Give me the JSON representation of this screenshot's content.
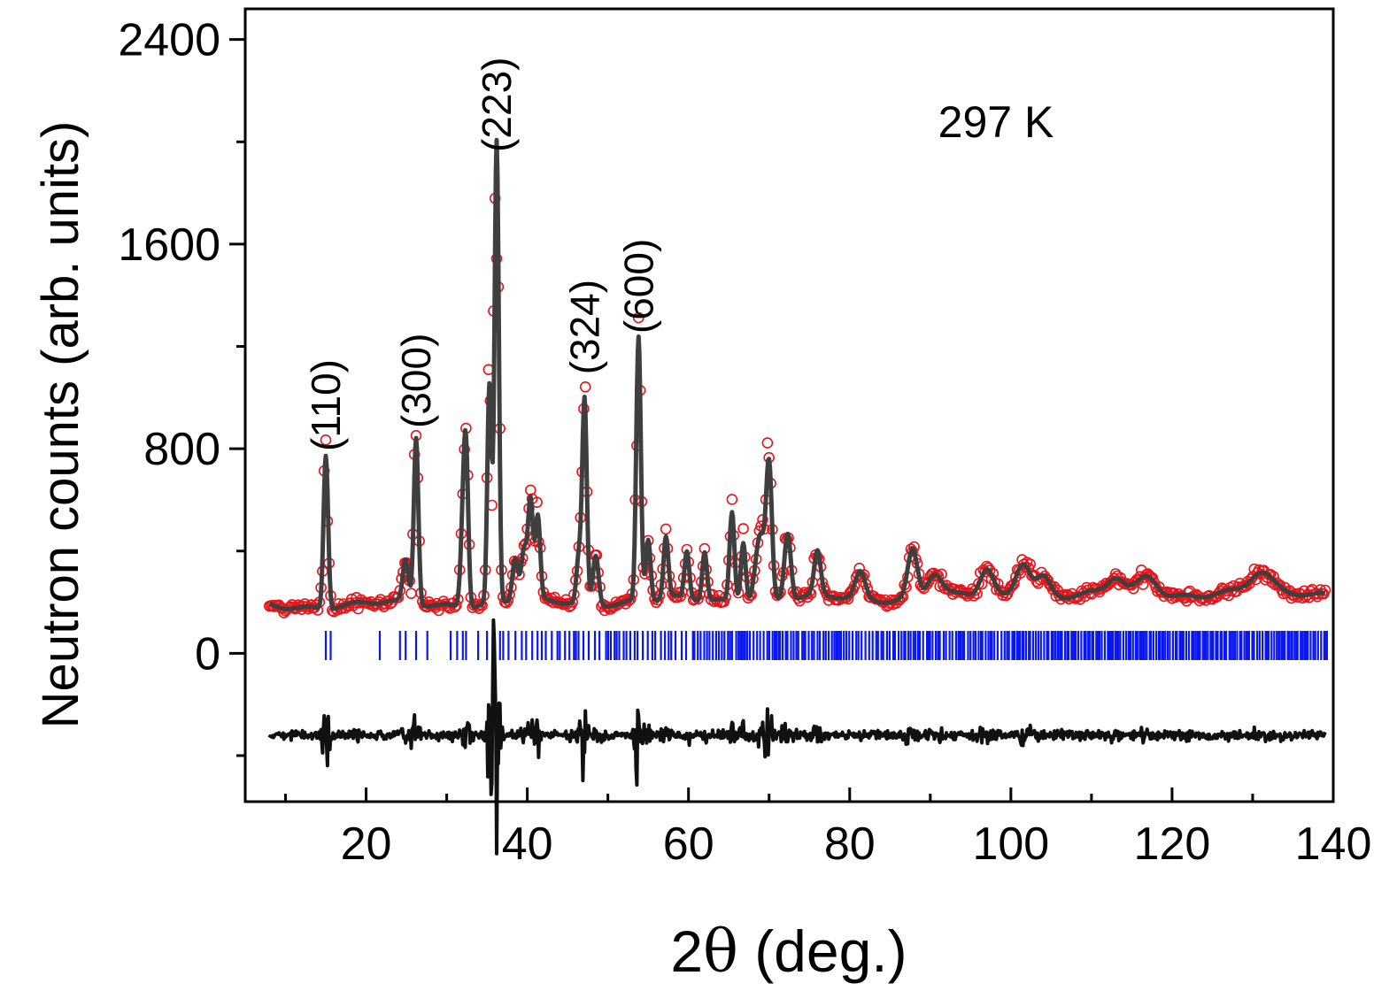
{
  "chart_data": {
    "type": "line",
    "title": "",
    "xlabel_prefix": "2",
    "xlabel_symbol": "θ",
    "xlabel_suffix": " (deg.)",
    "xlabel": "2θ (deg.)",
    "ylabel": "Neutron counts (arb. units)",
    "xlim": [
      5,
      140
    ],
    "ylim": [
      -580,
      2520
    ],
    "xticks": [
      20,
      40,
      60,
      80,
      100,
      120,
      140
    ],
    "yticks": [
      0,
      800,
      1600,
      2400
    ],
    "annotation": "297 K",
    "grid": false,
    "legend": "none",
    "colors": {
      "observed": "#e8141a",
      "calculated": "#3f3f3f",
      "bragg": "#0a17f0",
      "difference": "#111111",
      "axes": "#000000"
    },
    "background": 185,
    "background_end": 240,
    "difference_offset": -320,
    "peaks": [
      {
        "x": 15.0,
        "h": 600,
        "w": 0.28
      },
      {
        "x": 24.9,
        "h": 160,
        "w": 0.35
      },
      {
        "x": 26.2,
        "h": 650,
        "w": 0.28
      },
      {
        "x": 32.0,
        "h": 280,
        "w": 0.3
      },
      {
        "x": 32.4,
        "h": 560,
        "w": 0.28
      },
      {
        "x": 35.3,
        "h": 850,
        "w": 0.26
      },
      {
        "x": 36.2,
        "h": 1800,
        "w": 0.26
      },
      {
        "x": 38.5,
        "h": 170,
        "w": 0.35
      },
      {
        "x": 39.6,
        "h": 200,
        "w": 0.35
      },
      {
        "x": 40.4,
        "h": 380,
        "w": 0.3
      },
      {
        "x": 41.3,
        "h": 320,
        "w": 0.3
      },
      {
        "x": 46.4,
        "h": 180,
        "w": 0.3
      },
      {
        "x": 47.1,
        "h": 790,
        "w": 0.28
      },
      {
        "x": 48.5,
        "h": 190,
        "w": 0.35
      },
      {
        "x": 53.8,
        "h": 1030,
        "w": 0.28
      },
      {
        "x": 55.0,
        "h": 240,
        "w": 0.3
      },
      {
        "x": 57.2,
        "h": 240,
        "w": 0.3
      },
      {
        "x": 59.8,
        "h": 180,
        "w": 0.3
      },
      {
        "x": 62.0,
        "h": 190,
        "w": 0.3
      },
      {
        "x": 65.4,
        "h": 350,
        "w": 0.3
      },
      {
        "x": 66.8,
        "h": 240,
        "w": 0.3
      },
      {
        "x": 68.9,
        "h": 260,
        "w": 0.6
      },
      {
        "x": 70.0,
        "h": 500,
        "w": 0.35
      },
      {
        "x": 72.3,
        "h": 260,
        "w": 0.4
      },
      {
        "x": 76.0,
        "h": 170,
        "w": 0.4
      },
      {
        "x": 81.3,
        "h": 100,
        "w": 0.6
      },
      {
        "x": 87.8,
        "h": 190,
        "w": 0.6
      },
      {
        "x": 90.5,
        "h": 90,
        "w": 0.9
      },
      {
        "x": 97.0,
        "h": 100,
        "w": 0.8
      },
      {
        "x": 101.5,
        "h": 140,
        "w": 0.9
      },
      {
        "x": 104.0,
        "h": 80,
        "w": 0.9
      },
      {
        "x": 113.0,
        "h": 60,
        "w": 1.0
      },
      {
        "x": 117.0,
        "h": 70,
        "w": 1.2
      },
      {
        "x": 131.0,
        "h": 70,
        "w": 1.3
      }
    ],
    "peak_labels": [
      {
        "label": "(110)",
        "x": 15.0,
        "y": 790
      },
      {
        "label": "(300)",
        "x": 26.2,
        "y": 880
      },
      {
        "label": "(223)",
        "x": 36.2,
        "y": 1960
      },
      {
        "label": "(324)",
        "x": 47.1,
        "y": 1090
      },
      {
        "label": "(600)",
        "x": 53.8,
        "y": 1250
      }
    ],
    "series": [
      {
        "name": "Observed",
        "style": "open red circles"
      },
      {
        "name": "Calculated",
        "style": "dark gray line"
      },
      {
        "name": "Bragg positions",
        "style": "blue vertical ticks"
      },
      {
        "name": "Difference",
        "style": "black line"
      }
    ]
  }
}
